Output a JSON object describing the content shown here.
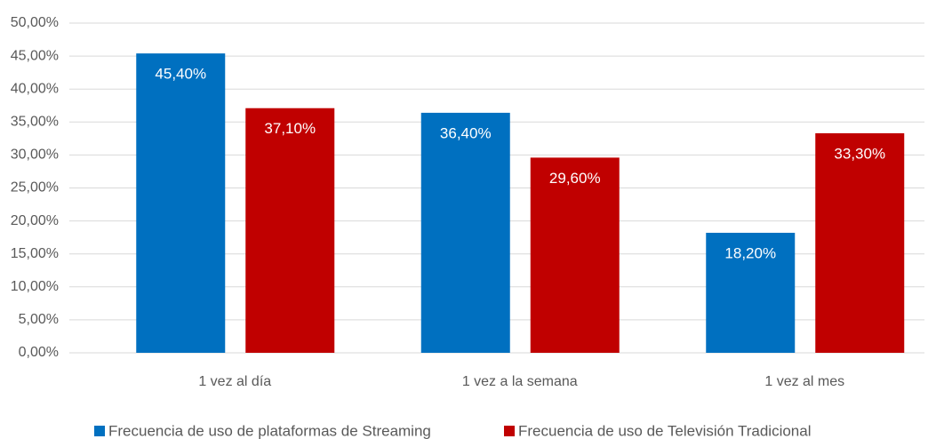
{
  "chart_data": {
    "type": "bar",
    "categories": [
      "1 vez al día",
      "1 vez a la semana",
      "1 vez al mes"
    ],
    "series": [
      {
        "name": "Frecuencia de uso de plataformas de Streaming",
        "color": "#0070c0",
        "values": [
          45.4,
          36.4,
          18.2
        ],
        "value_labels": [
          "45,40%",
          "36,40%",
          "18,20%"
        ]
      },
      {
        "name": "Frecuencia de uso de Televisión Tradicional",
        "color": "#c00000",
        "values": [
          37.1,
          29.6,
          33.3
        ],
        "value_labels": [
          "37,10%",
          "29,60%",
          "33,30%"
        ]
      }
    ],
    "ylim": [
      0,
      50
    ],
    "yticks": [
      {
        "value": 0,
        "label": "0,00%"
      },
      {
        "value": 5,
        "label": "5,00%"
      },
      {
        "value": 10,
        "label": "10,00%"
      },
      {
        "value": 15,
        "label": "15,00%"
      },
      {
        "value": 20,
        "label": "20,00%"
      },
      {
        "value": 25,
        "label": "25,00%"
      },
      {
        "value": 30,
        "label": "30,00%"
      },
      {
        "value": 35,
        "label": "35,00%"
      },
      {
        "value": 40,
        "label": "40,00%"
      },
      {
        "value": 45,
        "label": "45,00%"
      },
      {
        "value": 50,
        "label": "50,00%"
      }
    ],
    "grid": true,
    "legend": "bottom"
  }
}
